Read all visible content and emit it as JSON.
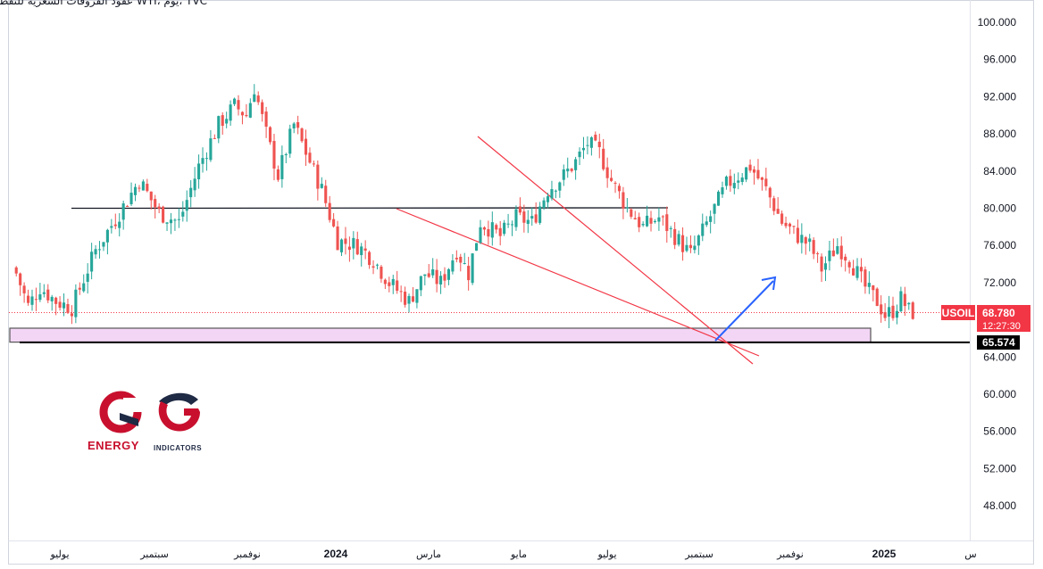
{
  "header": {
    "title": "عقود الفروقات السعرية للنفط الخام WTI، يوم، TVC"
  },
  "colors": {
    "up": "#26a69a",
    "down": "#ef5350",
    "price_tag": "#f23645",
    "support_tag": "#000000",
    "zone_fill": "#f3d6f5",
    "trendline": "#f23645",
    "arrow": "#2962ff",
    "resistance": "#131722"
  },
  "price_label": {
    "symbol": "USOIL",
    "price": "68.780",
    "countdown": "12:27:30"
  },
  "support_label": {
    "price": "65.574"
  },
  "logo": {
    "line1": "ENERGY",
    "line2": "INDICATORS"
  },
  "chart_data": {
    "type": "candlestick",
    "y_axis": {
      "ticks": [
        "100.000",
        "96.000",
        "92.000",
        "88.000",
        "84.000",
        "80.000",
        "76.000",
        "72.000",
        "64.000",
        "60.000",
        "56.000",
        "52.000",
        "48.000"
      ],
      "ylim": [
        45,
        101.6
      ],
      "scale": "linear"
    },
    "x_axis": {
      "ticks": [
        "يوليو",
        "سبتمبر",
        "نوفمبر",
        "2024",
        "مارس",
        "مايو",
        "يوليو",
        "سبتمبر",
        "نوفمبر",
        "2025",
        "س"
      ]
    },
    "close_path": [
      [
        0,
        73.0
      ],
      [
        3,
        69.5
      ],
      [
        6,
        71.5
      ],
      [
        10,
        70.0
      ],
      [
        14,
        69.3
      ],
      [
        20,
        75.5
      ],
      [
        26,
        79.5
      ],
      [
        31,
        83.0
      ],
      [
        36,
        79.5
      ],
      [
        41,
        78.5
      ],
      [
        46,
        84.5
      ],
      [
        51,
        89.0
      ],
      [
        55,
        91.0
      ],
      [
        58,
        90.0
      ],
      [
        60,
        93.0
      ],
      [
        63,
        88.0
      ],
      [
        66,
        83.5
      ],
      [
        70,
        89.0
      ],
      [
        73,
        86.0
      ],
      [
        77,
        82.0
      ],
      [
        81,
        76.5
      ],
      [
        86,
        76.0
      ],
      [
        90,
        74.5
      ],
      [
        94,
        72.0
      ],
      [
        99,
        70.0
      ],
      [
        103,
        73.0
      ],
      [
        107,
        72.0
      ],
      [
        111,
        75.5
      ],
      [
        114,
        73.0
      ],
      [
        117,
        78.5
      ],
      [
        122,
        77.0
      ],
      [
        126,
        79.0
      ],
      [
        130,
        78.5
      ],
      [
        134,
        82.0
      ],
      [
        138,
        83.5
      ],
      [
        141,
        85.0
      ],
      [
        144,
        87.0
      ],
      [
        147,
        86.0
      ],
      [
        150,
        83.0
      ],
      [
        154,
        80.0
      ],
      [
        158,
        78.0
      ],
      [
        162,
        79.0
      ],
      [
        166,
        77.0
      ],
      [
        170,
        75.0
      ],
      [
        173,
        77.5
      ],
      [
        176,
        80.0
      ],
      [
        179,
        82.5
      ],
      [
        182,
        83.5
      ],
      [
        185,
        84.5
      ],
      [
        189,
        82.0
      ],
      [
        193,
        78.5
      ],
      [
        197,
        77.0
      ],
      [
        200,
        76.0
      ],
      [
        203,
        73.5
      ],
      [
        207,
        76.0
      ],
      [
        210,
        74.5
      ],
      [
        214,
        71.5
      ],
      [
        217,
        70.0
      ],
      [
        219,
        68.5
      ],
      [
        221,
        69.0
      ],
      [
        223,
        70.3
      ],
      [
        225,
        69.0
      ],
      [
        226,
        68.78
      ]
    ],
    "drawings": {
      "resistance_level": 80.0,
      "support_zone": [
        65.6,
        67.1
      ],
      "support_level": 65.574,
      "current_price": 68.78
    }
  }
}
